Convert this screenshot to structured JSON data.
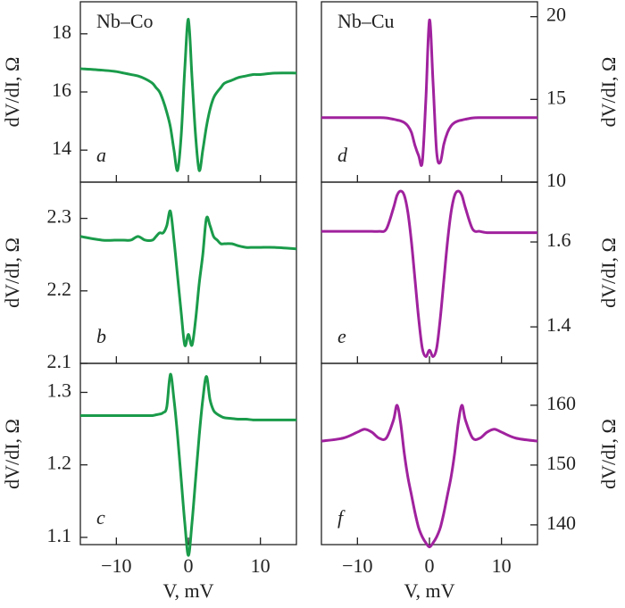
{
  "chart_data": [
    {
      "type": "line",
      "title": "Nb–Co",
      "label": "a",
      "y_label": "dV/dI, Ω",
      "y_axis_side": "left",
      "x": [
        -15,
        -12,
        -10,
        -9,
        -8,
        -7,
        -6,
        -5,
        -4.5,
        -4,
        -3.5,
        -3,
        -2.5,
        -2,
        -1.5,
        -1,
        -0.5,
        0,
        0.5,
        1,
        1.5,
        2,
        2.5,
        3,
        3.5,
        4,
        4.5,
        5,
        6,
        7,
        8,
        9,
        10,
        12,
        15
      ],
      "values": [
        16.8,
        16.75,
        16.7,
        16.65,
        16.6,
        16.55,
        16.45,
        16.3,
        16.15,
        16.0,
        15.7,
        15.3,
        14.8,
        14.0,
        13.3,
        14.5,
        16.8,
        18.5,
        16.5,
        14.5,
        13.3,
        14.0,
        14.8,
        15.4,
        15.8,
        16.0,
        16.15,
        16.3,
        16.4,
        16.5,
        16.55,
        16.6,
        16.6,
        16.65,
        16.65
      ],
      "color": "#1a9b4a",
      "xlim": [
        -15,
        15
      ],
      "xticks": [
        {
          "value": -10,
          "label": "−10"
        },
        0,
        10
      ],
      "ylim": [
        12.9,
        19.1
      ],
      "yticks": [
        14,
        16,
        18
      ]
    },
    {
      "type": "line",
      "label": "b",
      "y_label": "dV/dI, Ω",
      "y_axis_side": "left",
      "x": [
        -15,
        -12,
        -10,
        -9,
        -8,
        -7,
        -6,
        -5,
        -4.5,
        -4,
        -3.5,
        -3,
        -2.5,
        -2,
        -1.5,
        -1,
        -0.5,
        0,
        0.5,
        1,
        1.5,
        2,
        2.5,
        3,
        3.5,
        4,
        4.5,
        5,
        6,
        7,
        8,
        9,
        10,
        12,
        15
      ],
      "values": [
        2.275,
        2.27,
        2.27,
        2.27,
        2.27,
        2.275,
        2.27,
        2.27,
        2.275,
        2.28,
        2.28,
        2.29,
        2.31,
        2.27,
        2.22,
        2.17,
        2.125,
        2.14,
        2.125,
        2.16,
        2.21,
        2.25,
        2.3,
        2.29,
        2.275,
        2.27,
        2.265,
        2.265,
        2.265,
        2.262,
        2.26,
        2.26,
        2.26,
        2.26,
        2.258
      ],
      "color": "#1a9b4a",
      "xlim": [
        -15,
        15
      ],
      "xticks": [
        {
          "value": -10,
          "label": "−10"
        },
        0,
        10
      ],
      "ylim": [
        2.1,
        2.35
      ],
      "yticks": [
        2.1,
        2.2,
        2.3
      ]
    },
    {
      "type": "line",
      "label": "c",
      "y_label": "dV/dI, Ω",
      "y_axis_side": "left",
      "x_label": "V, mV",
      "x": [
        -15,
        -12,
        -10,
        -9,
        -8,
        -7,
        -6,
        -5,
        -4.5,
        -4,
        -3.5,
        -3,
        -2.5,
        -2,
        -1.5,
        -1,
        -0.5,
        0,
        0.5,
        1,
        1.5,
        2,
        2.5,
        3,
        3.5,
        4,
        4.5,
        5,
        6,
        7,
        8,
        9,
        10,
        12,
        15
      ],
      "values": [
        1.268,
        1.268,
        1.268,
        1.268,
        1.268,
        1.268,
        1.268,
        1.268,
        1.269,
        1.27,
        1.272,
        1.28,
        1.325,
        1.29,
        1.24,
        1.18,
        1.12,
        1.075,
        1.12,
        1.18,
        1.24,
        1.29,
        1.322,
        1.29,
        1.275,
        1.27,
        1.267,
        1.265,
        1.264,
        1.263,
        1.263,
        1.262,
        1.262,
        1.262,
        1.262
      ],
      "color": "#1a9b4a",
      "xlim": [
        -15,
        15
      ],
      "xticks": [
        {
          "value": -10,
          "label": "−10"
        },
        0,
        10
      ],
      "ylim": [
        1.09,
        1.34
      ],
      "yticks": [
        1.1,
        1.2,
        1.3
      ]
    },
    {
      "type": "line",
      "title": "Nb–Cu",
      "label": "d",
      "y_label": "dV/dI, Ω",
      "y_axis_side": "right",
      "x": [
        -15,
        -12,
        -10,
        -9,
        -8,
        -7,
        -6,
        -5,
        -4.5,
        -4,
        -3.5,
        -3,
        -2.5,
        -2,
        -1.5,
        -1,
        -0.5,
        0,
        0.5,
        1,
        1.5,
        2,
        2.5,
        3,
        3.5,
        4,
        4.5,
        5,
        6,
        7,
        8,
        9,
        10,
        12,
        15
      ],
      "values": [
        13.9,
        13.9,
        13.9,
        13.9,
        13.9,
        13.9,
        13.88,
        13.8,
        13.75,
        13.7,
        13.6,
        13.4,
        13.0,
        12.2,
        11.6,
        11.2,
        15.0,
        19.8,
        16.0,
        11.8,
        11.2,
        12.3,
        13.0,
        13.4,
        13.6,
        13.7,
        13.75,
        13.8,
        13.88,
        13.9,
        13.9,
        13.9,
        13.9,
        13.9,
        13.9
      ],
      "color": "#a0229e",
      "xlim": [
        -15,
        15
      ],
      "xticks": [
        {
          "value": -10,
          "label": "−10"
        },
        0,
        10
      ],
      "ylim": [
        10,
        20.9
      ],
      "yticks": [
        10,
        15,
        20
      ]
    },
    {
      "type": "line",
      "label": "e",
      "y_label": "dV/dI, Ω",
      "y_axis_side": "right",
      "x": [
        -15,
        -12,
        -10,
        -9,
        -8,
        -7,
        -6,
        -5,
        -4.5,
        -4,
        -3.5,
        -3,
        -2.5,
        -2,
        -1.5,
        -1,
        -0.5,
        0,
        0.5,
        1,
        1.5,
        2,
        2.5,
        3,
        3.5,
        4,
        4.5,
        5,
        6,
        7,
        8,
        9,
        10,
        12,
        15
      ],
      "values": [
        1.625,
        1.625,
        1.625,
        1.625,
        1.625,
        1.625,
        1.63,
        1.68,
        1.71,
        1.72,
        1.71,
        1.67,
        1.6,
        1.51,
        1.42,
        1.35,
        1.33,
        1.345,
        1.33,
        1.35,
        1.42,
        1.51,
        1.6,
        1.67,
        1.71,
        1.72,
        1.71,
        1.68,
        1.63,
        1.625,
        1.622,
        1.622,
        1.622,
        1.622,
        1.622
      ],
      "color": "#a0229e",
      "xlim": [
        -15,
        15
      ],
      "xticks": [
        {
          "value": -10,
          "label": "−10"
        },
        0,
        10
      ],
      "ylim": [
        1.314,
        1.741
      ],
      "yticks": [
        1.4,
        1.6
      ]
    },
    {
      "type": "line",
      "label": "f",
      "y_label": "dV/dI, Ω",
      "y_axis_side": "right",
      "x_label": "V, mV",
      "x": [
        -15,
        -12,
        -10,
        -9,
        -8,
        -7,
        -6,
        -5,
        -4.5,
        -4,
        -3.5,
        -3,
        -2.5,
        -2,
        -1.5,
        -1,
        -0.5,
        0,
        0.5,
        1,
        1.5,
        2,
        2.5,
        3,
        3.5,
        4,
        4.5,
        5,
        6,
        7,
        8,
        9,
        10,
        12,
        15
      ],
      "values": [
        154,
        154.5,
        155.5,
        156,
        155.5,
        154.5,
        154.5,
        157.5,
        160,
        157,
        152,
        148,
        145,
        142,
        139.5,
        138,
        137,
        136.3,
        137,
        138,
        139.5,
        142,
        145,
        148,
        152,
        157,
        160,
        157.5,
        154.5,
        154.5,
        155.5,
        156,
        155.5,
        154.5,
        154
      ],
      "color": "#a0229e",
      "xlim": [
        -15,
        15
      ],
      "xticks": [
        {
          "value": -10,
          "label": "−10"
        },
        0,
        10
      ],
      "ylim": [
        136.7,
        167
      ],
      "yticks": [
        140,
        150,
        160
      ]
    }
  ]
}
